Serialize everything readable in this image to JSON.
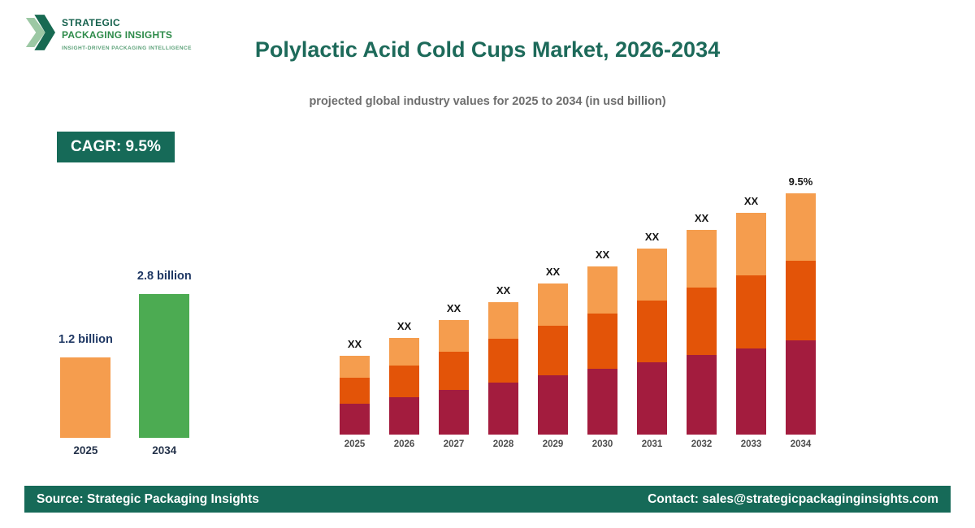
{
  "logo": {
    "line1": "STRATEGIC",
    "line2": "PACKAGING INSIGHTS",
    "tagline": "INSIGHT-DRIVEN PACKAGING INTELLIGENCE"
  },
  "header": {
    "title": "Polylactic Acid Cold Cups Market, 2026-2034",
    "subtitle": "projected global industry values for 2025 to 2034 (in usd billion)"
  },
  "cagr_badge": "CAGR: 9.5%",
  "colors": {
    "brand_teal": "#166a58",
    "segment_bottom": "#a31c3e",
    "segment_middle": "#e35408",
    "segment_top": "#f59d4e",
    "mini_orange": "#f59d4e",
    "mini_green": "#4cab52"
  },
  "mini_chart": {
    "bars": [
      {
        "year": "2025",
        "label": "1.2 billion",
        "color": "#f59d4e",
        "height": 99
      },
      {
        "year": "2034",
        "label": "2.8 billion",
        "color": "#4cab52",
        "height": 177
      }
    ]
  },
  "chart_data": {
    "type": "bar",
    "stacked": true,
    "title": "Polylactic Acid Cold Cups Market, 2026-2034",
    "xlabel": "",
    "ylabel": "usd billion",
    "grid": false,
    "legend": "none",
    "categories": [
      "2025",
      "2026",
      "2027",
      "2028",
      "2029",
      "2030",
      "2031",
      "2032",
      "2033",
      "2034"
    ],
    "bar_labels": [
      "XX",
      "XX",
      "XX",
      "XX",
      "XX",
      "XX",
      "XX",
      "XX",
      "XX",
      "9.5%"
    ],
    "totals_estimated_usd_billion": [
      1.2,
      1.31,
      1.44,
      1.57,
      1.72,
      1.89,
      2.07,
      2.26,
      2.48,
      2.8
    ],
    "series": [
      {
        "name": "bottom",
        "color": "#a31c3e",
        "values": [
          38,
          46,
          55,
          64,
          73,
          81,
          89,
          98,
          106,
          116
        ]
      },
      {
        "name": "middle",
        "color": "#e35408",
        "values": [
          32,
          39,
          47,
          54,
          61,
          68,
          76,
          83,
          90,
          98
        ]
      },
      {
        "name": "top",
        "color": "#f59d4e",
        "values": [
          27,
          34,
          39,
          45,
          52,
          58,
          64,
          71,
          77,
          83
        ]
      }
    ]
  },
  "footer": {
    "source": "Source: Strategic Packaging Insights",
    "contact": "Contact: sales@strategicpackaginginsights.com"
  }
}
